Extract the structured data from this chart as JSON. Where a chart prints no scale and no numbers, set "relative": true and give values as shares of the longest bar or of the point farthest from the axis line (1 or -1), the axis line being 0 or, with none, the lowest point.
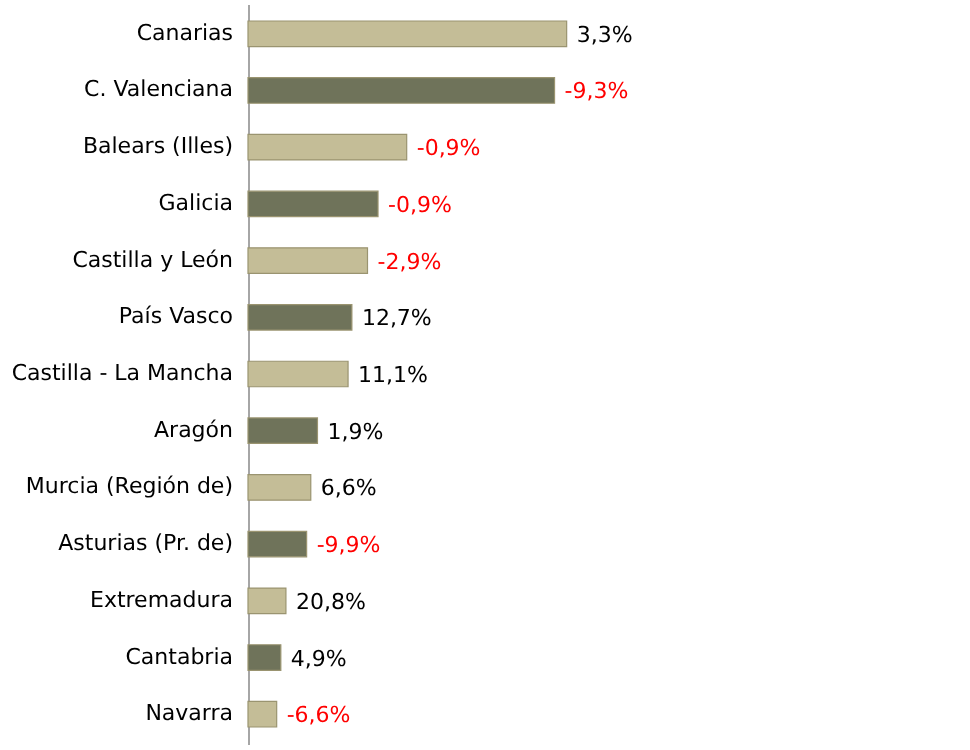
{
  "chart_data": {
    "type": "bar",
    "orientation": "horizontal",
    "relative": true,
    "categories": [
      "Canarias",
      "C. Valenciana",
      "Balears (Illes)",
      "Galicia",
      "Castilla y León",
      "País Vasco",
      "Castilla - La Mancha",
      "Aragón",
      "Murcia (Región de)",
      "Asturias (Pr. de)",
      "Extremadura",
      "Cantabria",
      "Navarra"
    ],
    "values": [
      1,
      0.962,
      0.498,
      0.408,
      0.375,
      0.326,
      0.314,
      0.218,
      0.197,
      0.184,
      0.119,
      0.103,
      0.09
    ],
    "colors": [
      "#c4bd97",
      "#6f735a",
      "#c4bd97",
      "#6f735a",
      "#c4bd97",
      "#6f735a",
      "#c4bd97",
      "#6f735a",
      "#c4bd97",
      "#6f735a",
      "#c4bd97",
      "#6f735a",
      "#c4bd97"
    ],
    "annotations": [
      {
        "text": "3,3%",
        "x": 1,
        "y": "Canarias"
      },
      {
        "text": "-9,3%",
        "x": 0.962,
        "y": "C. Valenciana"
      },
      {
        "text": "-0,9%",
        "x": 0.498,
        "y": "Balears (Illes)"
      },
      {
        "text": "-0,9%",
        "x": 0.408,
        "y": "Galicia"
      },
      {
        "text": "-2,9%",
        "x": 0.375,
        "y": "Castilla y León"
      },
      {
        "text": "12,7%",
        "x": 0.326,
        "y": "País Vasco"
      },
      {
        "text": "11,1%",
        "x": 0.314,
        "y": "Castilla - La Mancha"
      },
      {
        "text": "1,9%",
        "x": 0.218,
        "y": "Aragón"
      },
      {
        "text": "6,6%",
        "x": 0.197,
        "y": "Murcia (Región de)"
      },
      {
        "text": "-9,9%",
        "x": 0.184,
        "y": "Asturias (Pr. de)"
      },
      {
        "text": "20,8%",
        "x": 0.119,
        "y": "Extremadura"
      },
      {
        "text": "4,9%",
        "x": 0.103,
        "y": "Cantabria"
      },
      {
        "text": "-6,6%",
        "x": 0.09,
        "y": "Navarra"
      }
    ]
  }
}
